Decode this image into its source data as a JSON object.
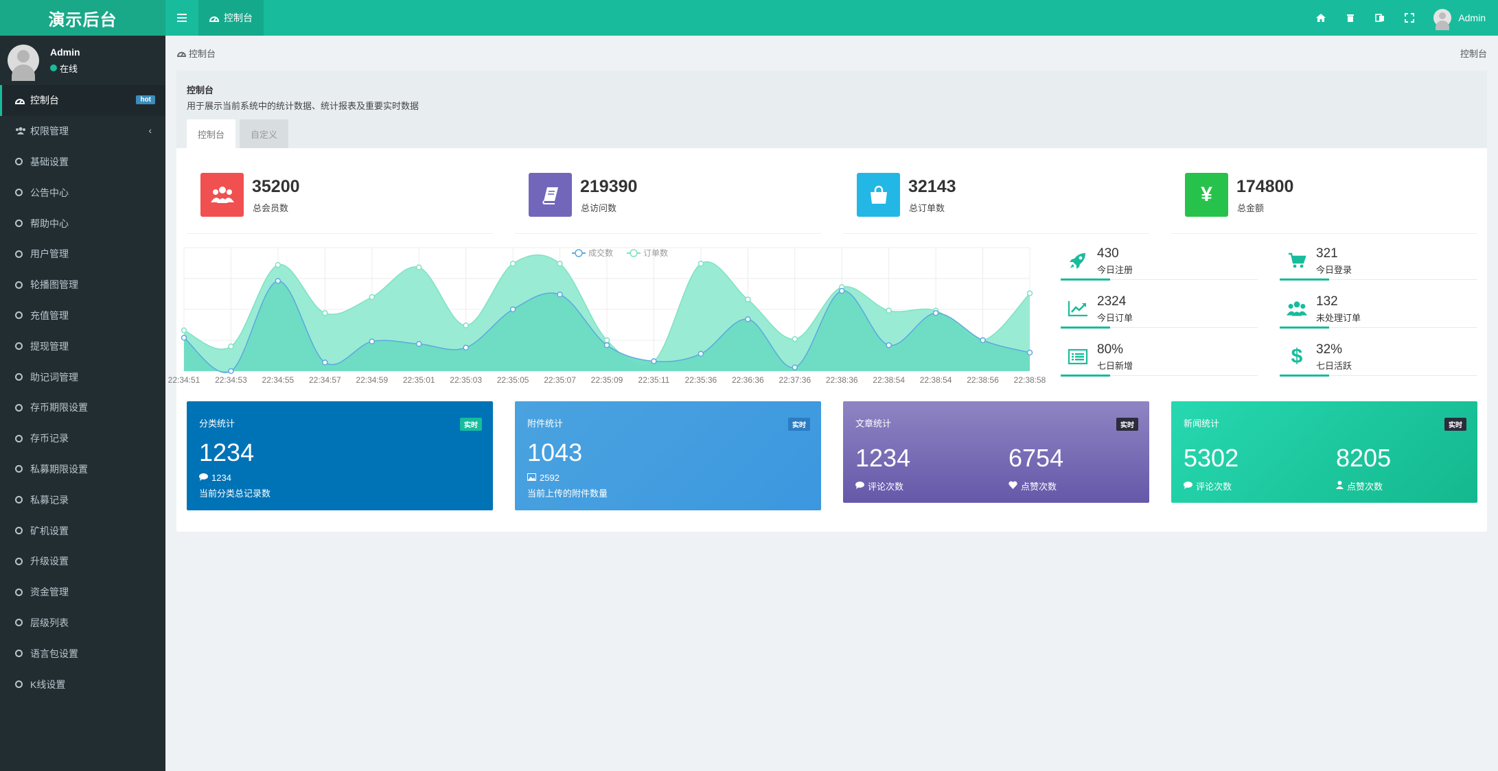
{
  "app": {
    "title": "演示后台",
    "nav_tab": "控制台",
    "user": "Admin"
  },
  "sidebar": {
    "user_name": "Admin",
    "user_status": "在线",
    "items": [
      {
        "label": "控制台",
        "badge": "hot",
        "icon": "dashboard-icon"
      },
      {
        "label": "权限管理",
        "icon": "users-icon",
        "arrow": "‹"
      },
      {
        "label": "基础设置"
      },
      {
        "label": "公告中心"
      },
      {
        "label": "帮助中心"
      },
      {
        "label": "用户管理"
      },
      {
        "label": "轮播图管理"
      },
      {
        "label": "充值管理"
      },
      {
        "label": "提现管理"
      },
      {
        "label": "助记词管理"
      },
      {
        "label": "存币期限设置"
      },
      {
        "label": "存币记录"
      },
      {
        "label": "私募期限设置"
      },
      {
        "label": "私募记录"
      },
      {
        "label": "矿机设置"
      },
      {
        "label": "升级设置"
      },
      {
        "label": "资金管理"
      },
      {
        "label": "层级列表"
      },
      {
        "label": "语言包设置"
      },
      {
        "label": "K线设置"
      }
    ]
  },
  "breadcrumb": {
    "left": "控制台",
    "right": "控制台"
  },
  "panel": {
    "title": "控制台",
    "description": "用于展示当前系统中的统计数据、统计报表及重要实时数据",
    "tabs": [
      "控制台",
      "自定义"
    ]
  },
  "stats": [
    {
      "value": "35200",
      "label": "总会员数",
      "color": "#f05050"
    },
    {
      "value": "219390",
      "label": "总访问数",
      "color": "#7266ba"
    },
    {
      "value": "32143",
      "label": "总订单数",
      "color": "#23b7e5"
    },
    {
      "value": "174800",
      "label": "总金额",
      "color": "#27c24c"
    }
  ],
  "mini_stats": [
    {
      "value": "430",
      "label": "今日注册"
    },
    {
      "value": "321",
      "label": "今日登录"
    },
    {
      "value": "2324",
      "label": "今日订单"
    },
    {
      "value": "132",
      "label": "未处理订单"
    },
    {
      "value": "80%",
      "label": "七日新增"
    },
    {
      "value": "32%",
      "label": "七日活跃"
    }
  ],
  "chart_data": {
    "type": "area",
    "legend": [
      "成交数",
      "订单数"
    ],
    "x": [
      "22:34:51",
      "22:34:53",
      "22:34:55",
      "22:34:57",
      "22:34:59",
      "22:35:01",
      "22:35:03",
      "22:35:05",
      "22:35:07",
      "22:35:09",
      "22:35:11",
      "22:35:36",
      "22:36:36",
      "22:37:36",
      "22:38:36",
      "22:38:54",
      "22:38:54",
      "22:38:56",
      "22:38:58"
    ],
    "series": [
      {
        "name": "成交数",
        "values": [
          270,
          0,
          730,
          70,
          240,
          220,
          190,
          500,
          620,
          210,
          80,
          140,
          420,
          30,
          650,
          210,
          470,
          250,
          150
        ]
      },
      {
        "name": "订单数",
        "values": [
          330,
          200,
          860,
          470,
          600,
          840,
          370,
          870,
          870,
          250,
          80,
          870,
          580,
          260,
          680,
          490,
          490,
          250,
          630
        ]
      }
    ],
    "ylim": [
      0,
      1000
    ],
    "colors": {
      "成交数": "#63c5e8",
      "订单数": "#8ee8cd"
    }
  },
  "cards": [
    {
      "title": "分类统计",
      "badge": "实时",
      "big": "1234",
      "sub": "1234",
      "desc": "当前分类总记录数"
    },
    {
      "title": "附件统计",
      "badge": "实时",
      "big": "1043",
      "sub": "2592",
      "desc": "当前上传的附件数量"
    },
    {
      "title": "文章统计",
      "badge": "实时",
      "left_num": "1234",
      "left_cap": "评论次数",
      "right_num": "6754",
      "right_cap": "点赞次数"
    },
    {
      "title": "新闻统计",
      "badge": "实时",
      "left_num": "5302",
      "left_cap": "评论次数",
      "right_num": "8205",
      "right_cap": "点赞次数"
    }
  ]
}
